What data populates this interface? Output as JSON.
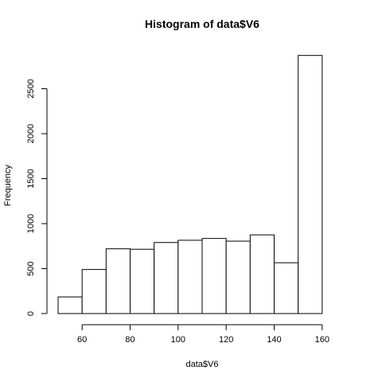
{
  "chart_data": {
    "type": "bar",
    "title": "Histogram of data$V6",
    "xlabel": "data$V6",
    "ylabel": "Frequency",
    "bins": [
      {
        "x0": 50,
        "x1": 60,
        "count": 185
      },
      {
        "x0": 60,
        "x1": 70,
        "count": 490
      },
      {
        "x0": 70,
        "x1": 80,
        "count": 720
      },
      {
        "x0": 80,
        "x1": 90,
        "count": 715
      },
      {
        "x0": 90,
        "x1": 100,
        "count": 790
      },
      {
        "x0": 100,
        "x1": 110,
        "count": 815
      },
      {
        "x0": 110,
        "x1": 120,
        "count": 835
      },
      {
        "x0": 120,
        "x1": 130,
        "count": 805
      },
      {
        "x0": 130,
        "x1": 140,
        "count": 875
      },
      {
        "x0": 140,
        "x1": 150,
        "count": 565
      },
      {
        "x0": 150,
        "x1": 160,
        "count": 2870
      },
      {
        "x0": 160,
        "x1": 170,
        "count": 0
      }
    ],
    "xlim": [
      50,
      170
    ],
    "ylim": [
      0,
      2900
    ],
    "xticks": [
      60,
      80,
      100,
      120,
      140,
      160
    ],
    "yticks": [
      0,
      500,
      1000,
      1500,
      2000,
      2500
    ],
    "grid": false
  }
}
